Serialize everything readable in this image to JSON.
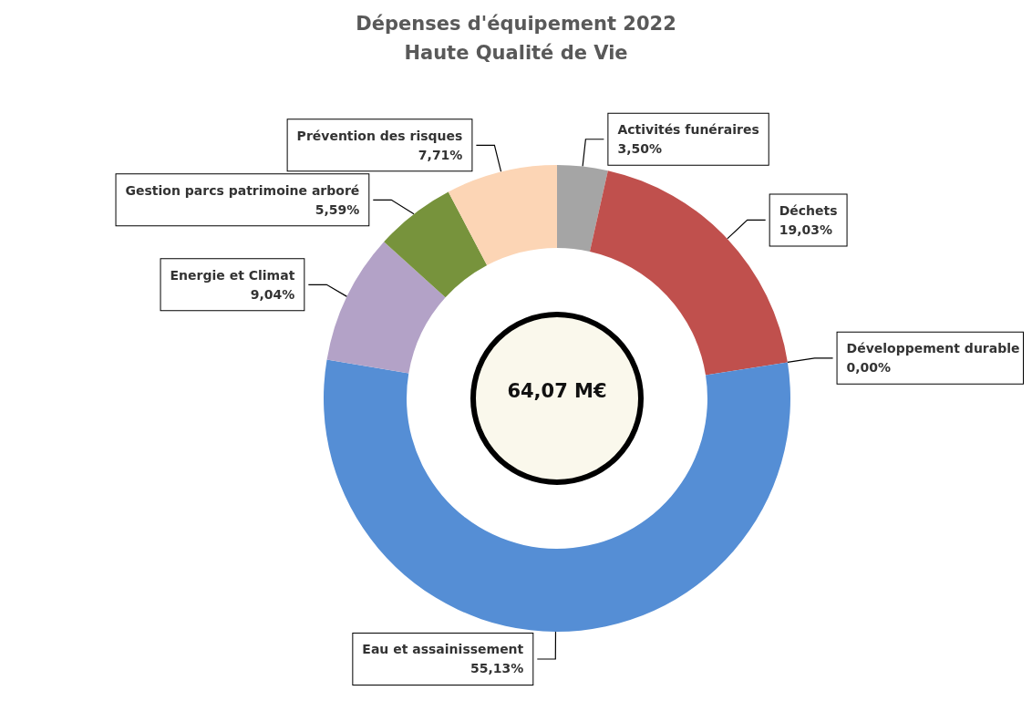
{
  "chart_data": {
    "type": "donut",
    "title": "Dépenses d'équipement 2022",
    "subtitle": "Haute Qualité de Vie",
    "categories": [
      "Activités funéraires",
      "Déchets",
      "Développement durable",
      "Eau et assainissement",
      "Energie et Climat",
      "Gestion parcs patrimoine arboré",
      "Prévention des risques"
    ],
    "values": [
      3.5,
      19.03,
      0,
      55.13,
      9.04,
      5.59,
      7.71
    ],
    "value_labels": [
      "3,50%",
      "19,03%",
      "0,00%",
      "55,13%",
      "9,04%",
      "5,59%",
      "7,71%"
    ],
    "colors": [
      "#a5a5a5",
      "#c0504d",
      "#4f81bd",
      "#558ed5",
      "#b3a2c7",
      "#77933c",
      "#fcd5b5"
    ],
    "annotations": [
      "64,07 M€"
    ],
    "legend": false
  }
}
